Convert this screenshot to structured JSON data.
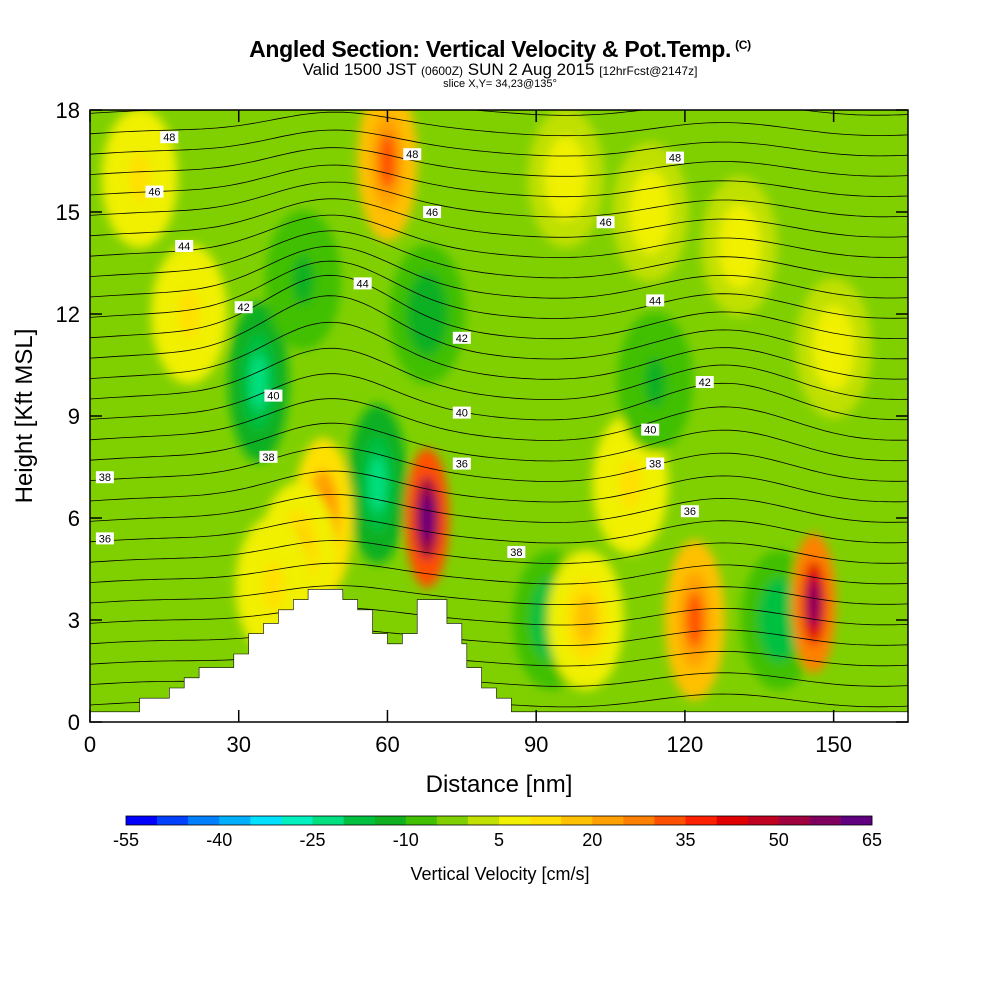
{
  "title": {
    "main": "Angled Section: Vertical Velocity & Pot.Temp.",
    "main_tag": "(C)",
    "valid_prefix": "Valid 1500 JST",
    "valid_zulu": "(0600Z)",
    "valid_date": "SUN 2 Aug 2015",
    "valid_fcst": "[12hrFcst@2147z]",
    "slice": "slice X,Y= 34,23@135°"
  },
  "chart_data": {
    "type": "heatmap",
    "xlabel": "Distance [nm]",
    "ylabel": "Height [Kft MSL]",
    "xlim": [
      0,
      165
    ],
    "ylim": [
      0,
      18
    ],
    "xticks": [
      0,
      30,
      60,
      90,
      120,
      150
    ],
    "yticks": [
      0,
      3,
      6,
      9,
      12,
      15,
      18
    ],
    "grid": false,
    "colorbar": {
      "label": "Vertical Velocity [cm/s]",
      "tick_labels": [
        "-55",
        "-40",
        "-25",
        "-10",
        "5",
        "20",
        "35",
        "50",
        "65"
      ],
      "range": [
        -55,
        65
      ],
      "step": 5,
      "colors": [
        "#0000ff",
        "#0040ff",
        "#0080ff",
        "#00b0ff",
        "#00e0ff",
        "#00f0c0",
        "#00e080",
        "#00c040",
        "#10b020",
        "#40c000",
        "#80d000",
        "#c0e000",
        "#f0f000",
        "#ffe000",
        "#ffc000",
        "#ffa000",
        "#ff8000",
        "#ff5000",
        "#ff2000",
        "#e00000",
        "#c00020",
        "#a00040",
        "#800060",
        "#600080"
      ]
    },
    "contour_series": "Potential temperature (C)",
    "contour_labels": [
      {
        "value": "48",
        "x": 16,
        "y": 17.2
      },
      {
        "value": "48",
        "x": 65,
        "y": 16.7
      },
      {
        "value": "48",
        "x": 118,
        "y": 16.6
      },
      {
        "value": "46",
        "x": 13,
        "y": 15.6
      },
      {
        "value": "46",
        "x": 69,
        "y": 15.0
      },
      {
        "value": "46",
        "x": 104,
        "y": 14.7
      },
      {
        "value": "44",
        "x": 19,
        "y": 14.0
      },
      {
        "value": "44",
        "x": 55,
        "y": 12.9
      },
      {
        "value": "44",
        "x": 114,
        "y": 12.4
      },
      {
        "value": "42",
        "x": 31,
        "y": 12.2
      },
      {
        "value": "42",
        "x": 75,
        "y": 11.3
      },
      {
        "value": "42",
        "x": 124,
        "y": 10.0
      },
      {
        "value": "40",
        "x": 37,
        "y": 9.6
      },
      {
        "value": "40",
        "x": 75,
        "y": 9.1
      },
      {
        "value": "40",
        "x": 113,
        "y": 8.6
      },
      {
        "value": "38",
        "x": 36,
        "y": 7.8
      },
      {
        "value": "38",
        "x": 114,
        "y": 7.6
      },
      {
        "value": "38",
        "x": 86,
        "y": 5.0
      },
      {
        "value": "38",
        "x": 3,
        "y": 7.2
      },
      {
        "value": "36",
        "x": 75,
        "y": 7.6
      },
      {
        "value": "36",
        "x": 121,
        "y": 6.2
      },
      {
        "value": "36",
        "x": 3,
        "y": 5.4
      }
    ],
    "terrain": [
      [
        0,
        0.3
      ],
      [
        10,
        0.3
      ],
      [
        10,
        0.7
      ],
      [
        16,
        0.7
      ],
      [
        16,
        1.0
      ],
      [
        19,
        1.0
      ],
      [
        19,
        1.3
      ],
      [
        22,
        1.3
      ],
      [
        22,
        1.6
      ],
      [
        29,
        1.6
      ],
      [
        29,
        2.0
      ],
      [
        32,
        2.0
      ],
      [
        32,
        2.6
      ],
      [
        35,
        2.6
      ],
      [
        35,
        2.9
      ],
      [
        38,
        2.9
      ],
      [
        38,
        3.3
      ],
      [
        41,
        3.3
      ],
      [
        41,
        3.6
      ],
      [
        44,
        3.6
      ],
      [
        44,
        3.9
      ],
      [
        51,
        3.9
      ],
      [
        51,
        3.6
      ],
      [
        54,
        3.6
      ],
      [
        54,
        3.3
      ],
      [
        57,
        3.3
      ],
      [
        57,
        2.6
      ],
      [
        60,
        2.6
      ],
      [
        60,
        2.3
      ],
      [
        63,
        2.3
      ],
      [
        63,
        2.6
      ],
      [
        66,
        2.6
      ],
      [
        66,
        3.6
      ],
      [
        72,
        3.6
      ],
      [
        72,
        2.9
      ],
      [
        75,
        2.9
      ],
      [
        75,
        2.3
      ],
      [
        76,
        2.3
      ],
      [
        76,
        1.6
      ],
      [
        79,
        1.6
      ],
      [
        79,
        1.0
      ],
      [
        82,
        1.0
      ],
      [
        82,
        0.7
      ],
      [
        85,
        0.7
      ],
      [
        85,
        0.3
      ],
      [
        165,
        0.3
      ]
    ],
    "velocity_features": [
      {
        "x": 10,
        "y": 16,
        "value": 10
      },
      {
        "x": 20,
        "y": 12,
        "value": 10
      },
      {
        "x": 34,
        "y": 10,
        "value": -25
      },
      {
        "x": 43,
        "y": 13,
        "value": -12
      },
      {
        "x": 60,
        "y": 16.5,
        "value": 30
      },
      {
        "x": 58,
        "y": 7,
        "value": -25
      },
      {
        "x": 68,
        "y": 6,
        "value": 65
      },
      {
        "x": 68,
        "y": 12,
        "value": -15
      },
      {
        "x": 47,
        "y": 6,
        "value": 28
      },
      {
        "x": 42,
        "y": 5,
        "value": 18
      },
      {
        "x": 37,
        "y": 4,
        "value": 12
      },
      {
        "x": 93,
        "y": 3,
        "value": -20
      },
      {
        "x": 100,
        "y": 3,
        "value": 15
      },
      {
        "x": 109,
        "y": 7,
        "value": 10
      },
      {
        "x": 114,
        "y": 10,
        "value": -12
      },
      {
        "x": 122,
        "y": 3,
        "value": 30
      },
      {
        "x": 139,
        "y": 3,
        "value": -20
      },
      {
        "x": 146,
        "y": 3.5,
        "value": 55
      },
      {
        "x": 131,
        "y": 14,
        "value": 8
      },
      {
        "x": 150,
        "y": 11,
        "value": 8
      },
      {
        "x": 96,
        "y": 16,
        "value": 8
      },
      {
        "x": 113,
        "y": 15,
        "value": 8
      }
    ]
  }
}
